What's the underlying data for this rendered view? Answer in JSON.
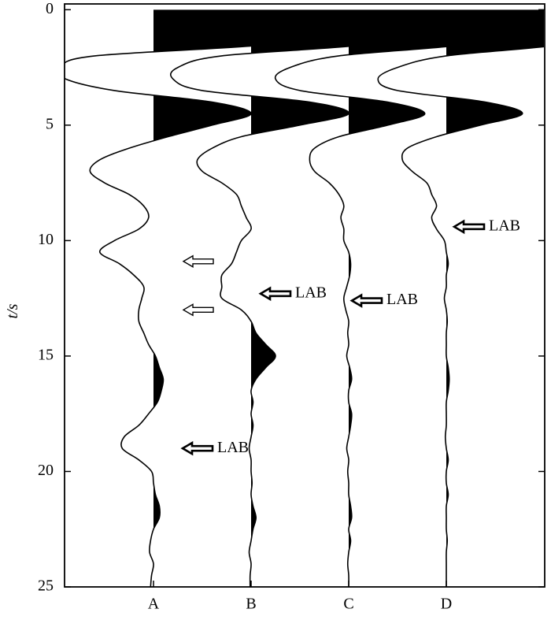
{
  "chart_data": {
    "type": "wiggle",
    "ylabel": "t/s",
    "ylim": [
      -0.25,
      25
    ],
    "yticks": [
      0,
      5,
      10,
      15,
      20,
      25
    ],
    "inverted_y": true,
    "fill_positive": true,
    "color": "#000000",
    "x": [
      0,
      0.5,
      1,
      1.5,
      2,
      2.5,
      3,
      3.5,
      4,
      4.5,
      5,
      5.5,
      6,
      6.5,
      7,
      7.5,
      8,
      8.5,
      9,
      9.5,
      10,
      10.5,
      11,
      11.5,
      12,
      12.5,
      13,
      13.5,
      14,
      14.5,
      15,
      15.5,
      16,
      16.5,
      17,
      17.5,
      18,
      18.5,
      19,
      19.5,
      20,
      20.5,
      21,
      21.5,
      22,
      22.5,
      23,
      23.5,
      24,
      24.5,
      25
    ],
    "series": [
      {
        "name": "A",
        "values": [
          1.3,
          1.3,
          1.3,
          1.2,
          -0.6,
          -0.95,
          -0.9,
          -0.4,
          0.6,
          1.0,
          0.6,
          0.15,
          -0.25,
          -0.55,
          -0.65,
          -0.5,
          -0.25,
          -0.1,
          -0.05,
          -0.15,
          -0.4,
          -0.55,
          -0.35,
          -0.2,
          -0.1,
          -0.12,
          -0.15,
          -0.15,
          -0.1,
          -0.05,
          0.02,
          0.06,
          0.1,
          0.08,
          0.04,
          -0.05,
          -0.15,
          -0.3,
          -0.32,
          -0.15,
          -0.02,
          0.0,
          0.02,
          0.06,
          0.06,
          0.0,
          -0.03,
          -0.04,
          0.0,
          -0.02,
          -0.03
        ]
      },
      {
        "name": "B",
        "values": [
          1.3,
          1.3,
          1.3,
          1.2,
          -0.3,
          -0.75,
          -0.8,
          -0.5,
          0.6,
          1.0,
          0.5,
          -0.1,
          -0.4,
          -0.55,
          -0.5,
          -0.3,
          -0.15,
          -0.1,
          -0.05,
          0.0,
          -0.1,
          -0.15,
          -0.2,
          -0.3,
          -0.3,
          -0.3,
          -0.1,
          0.0,
          0.05,
          0.15,
          0.25,
          0.15,
          0.05,
          0.0,
          0.02,
          0.0,
          0.02,
          0.0,
          -0.02,
          0.0,
          0.0,
          0.01,
          0.0,
          0.02,
          0.05,
          0.02,
          0.0,
          -0.02,
          0.0,
          -0.01,
          -0.01
        ]
      },
      {
        "name": "C",
        "values": [
          1.3,
          1.3,
          1.3,
          1.2,
          -0.1,
          -0.6,
          -0.75,
          -0.5,
          0.4,
          0.78,
          0.4,
          -0.1,
          -0.35,
          -0.4,
          -0.35,
          -0.2,
          -0.1,
          -0.05,
          -0.08,
          -0.05,
          -0.05,
          0.0,
          0.02,
          0.01,
          -0.02,
          -0.05,
          -0.03,
          0.0,
          -0.01,
          0.0,
          -0.02,
          0.01,
          0.03,
          0.0,
          0.0,
          0.03,
          0.02,
          0.0,
          -0.02,
          0.0,
          -0.01,
          0.0,
          0.0,
          0.02,
          0.03,
          0.0,
          0.02,
          0.0,
          -0.01,
          0.0,
          0.0
        ]
      },
      {
        "name": "D",
        "values": [
          1.3,
          1.3,
          1.3,
          1.2,
          0.0,
          -0.5,
          -0.7,
          -0.5,
          0.4,
          0.78,
          0.35,
          -0.1,
          -0.4,
          -0.45,
          -0.35,
          -0.2,
          -0.15,
          -0.1,
          -0.15,
          -0.1,
          -0.02,
          0.0,
          0.02,
          0.0,
          0.0,
          -0.02,
          0.0,
          0.01,
          0.0,
          0.0,
          0.0,
          0.02,
          0.03,
          0.02,
          0.0,
          0.0,
          0.0,
          -0.01,
          0.0,
          0.02,
          0.0,
          0.0,
          0.02,
          0.0,
          0.0,
          0.0,
          0.01,
          0.0,
          0.0,
          0.0,
          0.0
        ]
      }
    ],
    "annotations": [
      {
        "series": 0,
        "t": 10.9
      },
      {
        "series": 0,
        "t": 13.0
      },
      {
        "series": 0,
        "t": 19.0,
        "text": "LAB"
      },
      {
        "series": 1,
        "t": 12.3,
        "text": "LAB"
      },
      {
        "series": 2,
        "t": 12.6,
        "text": "LAB"
      },
      {
        "series": 3,
        "t": 9.4,
        "text": "LAB"
      }
    ]
  }
}
